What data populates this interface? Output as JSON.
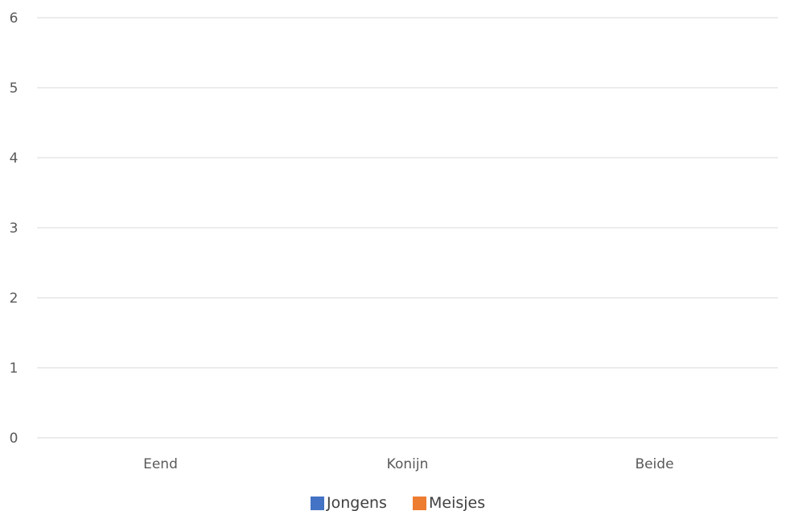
{
  "chart_data": {
    "type": "bar",
    "categories": [
      "Eend",
      "Konijn",
      "Beide"
    ],
    "series": [
      {
        "name": "Jongens",
        "values": [
          0,
          0,
          0
        ],
        "color": "#4472C4"
      },
      {
        "name": "Meisjes",
        "values": [
          0,
          0,
          0
        ],
        "color": "#ED7D31"
      }
    ],
    "ylim": [
      0,
      6
    ],
    "yticks": [
      "0",
      "1",
      "2",
      "3",
      "4",
      "5",
      "6"
    ],
    "grid": true,
    "legend_position": "bottom",
    "title": "",
    "xlabel": "",
    "ylabel": ""
  }
}
